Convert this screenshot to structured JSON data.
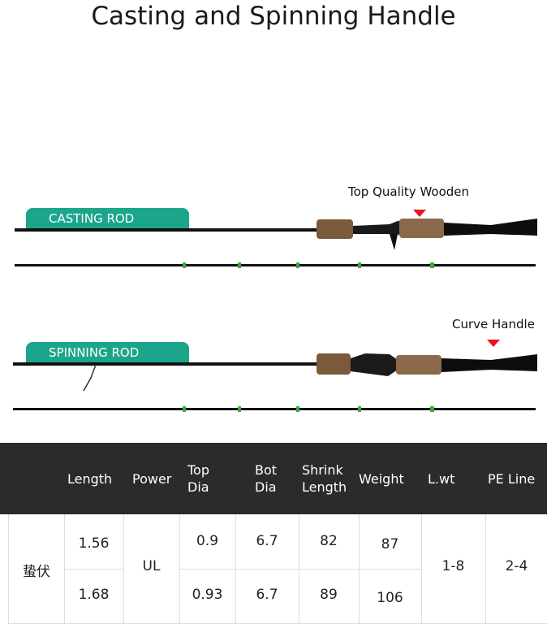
{
  "title": "Casting and Spinning Handle",
  "casting": {
    "tag": "CASTING ROD",
    "note": "Top Quality Wooden"
  },
  "spinning": {
    "tag": "SPINNING ROD",
    "note": "Curve Handle"
  },
  "colors": {
    "tag": "#1ba58b",
    "marker": "#e8141a",
    "header": "#2b2b2b"
  },
  "table": {
    "headers": [
      "Length",
      "Power",
      "Top\nDia",
      "Bot\nDia",
      "Shrink\nLength",
      "Weight",
      "L.wt",
      "PE Line"
    ],
    "model": "蛰伏",
    "power": "UL",
    "lwt": "1-8",
    "pe_line": "2-4",
    "rows": [
      {
        "length": "1.56",
        "top_dia": "0.9",
        "bot_dia": "6.7",
        "shrink": "82",
        "weight": "87"
      },
      {
        "length": "1.68",
        "top_dia": "0.93",
        "bot_dia": "6.7",
        "shrink": "89",
        "weight": "106"
      }
    ]
  }
}
